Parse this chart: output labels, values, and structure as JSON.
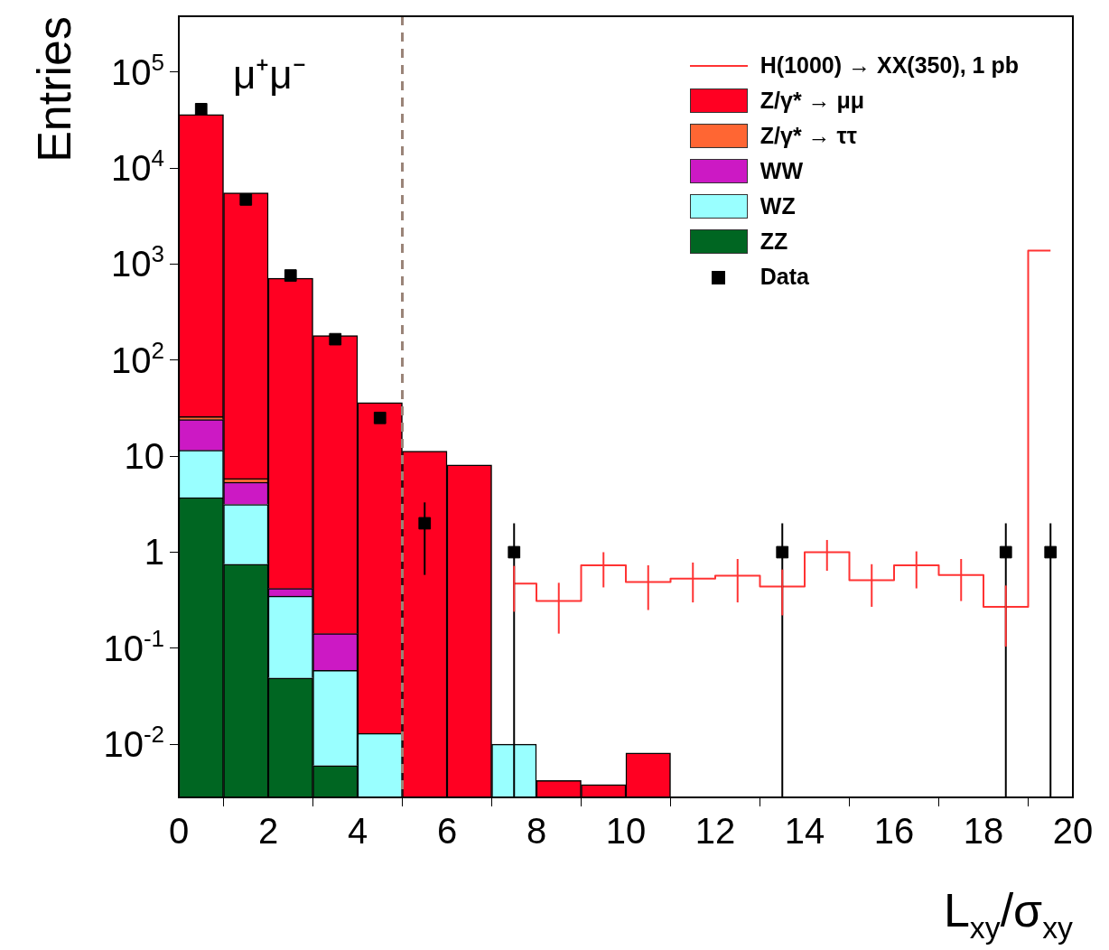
{
  "chart_data": {
    "type": "bar",
    "xlabel": "L$_{xy}$/σ$_{xy}$",
    "ylabel": "Entries",
    "x": [
      0.5,
      1.5,
      2.5,
      3.5,
      4.5,
      5.5,
      6.5,
      7.5,
      8.5,
      9.5,
      10.5,
      11.5,
      12.5,
      13.5,
      14.5,
      15.5,
      16.5,
      17.5,
      18.5,
      19.5
    ],
    "series": [
      {
        "name": "ZZ",
        "type": "bar",
        "color": "#006622",
        "values": [
          3.7,
          0.75,
          0.049,
          0.006,
          null,
          null,
          null,
          null,
          null,
          null,
          null,
          null,
          null,
          null,
          null,
          null,
          null,
          null,
          null,
          null
        ]
      },
      {
        "name": "WZ",
        "type": "bar",
        "color": "#99ffff",
        "values": [
          7.8,
          2.4,
          0.3,
          0.053,
          0.013,
          null,
          null,
          0.01,
          null,
          null,
          null,
          null,
          null,
          null,
          null,
          null,
          null,
          null,
          null,
          null
        ]
      },
      {
        "name": "WW",
        "type": "bar",
        "color": "#cc19c4",
        "values": [
          12.5,
          2.2,
          0.07,
          0.083,
          null,
          null,
          null,
          null,
          null,
          null,
          null,
          null,
          null,
          null,
          null,
          null,
          null,
          null,
          null,
          null
        ]
      },
      {
        "name": "Z/γ* → ττ",
        "type": "bar",
        "color": "#ff6633",
        "values": [
          1.8,
          0.5,
          null,
          null,
          null,
          null,
          null,
          null,
          null,
          null,
          null,
          null,
          null,
          null,
          null,
          null,
          null,
          null,
          null,
          null
        ]
      },
      {
        "name": "Z/γ* → μμ",
        "type": "bar",
        "color": "#ff0022",
        "values": [
          36000,
          5500,
          710,
          180,
          36,
          11.3,
          8.1,
          null,
          0.0042,
          0.0038,
          0.0081,
          null,
          null,
          null,
          null,
          null,
          null,
          null,
          null,
          null
        ]
      },
      {
        "name": "H(1000) → XX(350), 1 pb",
        "type": "step",
        "color": "#ff3333",
        "values": [
          null,
          null,
          null,
          null,
          null,
          null,
          null,
          0.47,
          0.31,
          0.73,
          0.49,
          0.53,
          0.57,
          0.44,
          1.0,
          0.51,
          0.73,
          0.58,
          0.27,
          1380
        ],
        "errors": [
          null,
          null,
          null,
          null,
          null,
          null,
          null,
          [
            0.24,
            0.72
          ],
          [
            0.142,
            0.48
          ],
          [
            0.43,
            1.0
          ],
          [
            0.25,
            0.73
          ],
          [
            0.3,
            0.78
          ],
          [
            0.3,
            0.85
          ],
          [
            0.22,
            0.66
          ],
          [
            0.64,
            1.34
          ],
          [
            0.27,
            0.75
          ],
          [
            0.42,
            1.02
          ],
          [
            0.31,
            0.85
          ],
          [
            0.104,
            0.45
          ],
          null
        ]
      },
      {
        "name": "Data",
        "type": "scatter",
        "color": "#000000",
        "marker": "square",
        "x": [
          0.5,
          1.5,
          2.5,
          3.5,
          4.5,
          5.5,
          7.5,
          13.5,
          18.5,
          19.5
        ],
        "values": [
          41000,
          4700,
          760,
          165,
          25,
          2.0,
          1,
          1,
          1,
          1
        ],
        "errors": [
          null,
          null,
          null,
          null,
          null,
          [
            0.58,
            3.3
          ],
          [
            0.0028,
            2.0
          ],
          [
            0.0028,
            2.0
          ],
          [
            0.0028,
            2.0
          ],
          [
            0.0028,
            2.0
          ]
        ]
      }
    ],
    "stacked": true,
    "log": true,
    "grid": false,
    "legend": "top right",
    "xlim": [
      0,
      20
    ],
    "xticks": [
      0,
      2,
      4,
      6,
      8,
      10,
      12,
      14,
      16,
      18,
      20
    ],
    "ylim": [
      0.0028,
      380000
    ],
    "yticks": [
      {
        "value": 0.01,
        "label": "10$^{-2}$"
      },
      {
        "value": 0.1,
        "label": "10$^{-1}$"
      },
      1,
      10,
      {
        "value": 100,
        "label": "10$^{2}$"
      },
      {
        "value": 1000,
        "label": "10$^{3}$"
      },
      {
        "value": 10000,
        "label": "10$^{4}$"
      },
      {
        "value": 100000,
        "label": "10$^{5}$"
      }
    ],
    "ref_lines": [
      {
        "axis": "x",
        "value": 5,
        "color": "#9a8478",
        "line_style": "dashed"
      }
    ],
    "annotations": [
      "μ⁺μ⁻"
    ]
  }
}
